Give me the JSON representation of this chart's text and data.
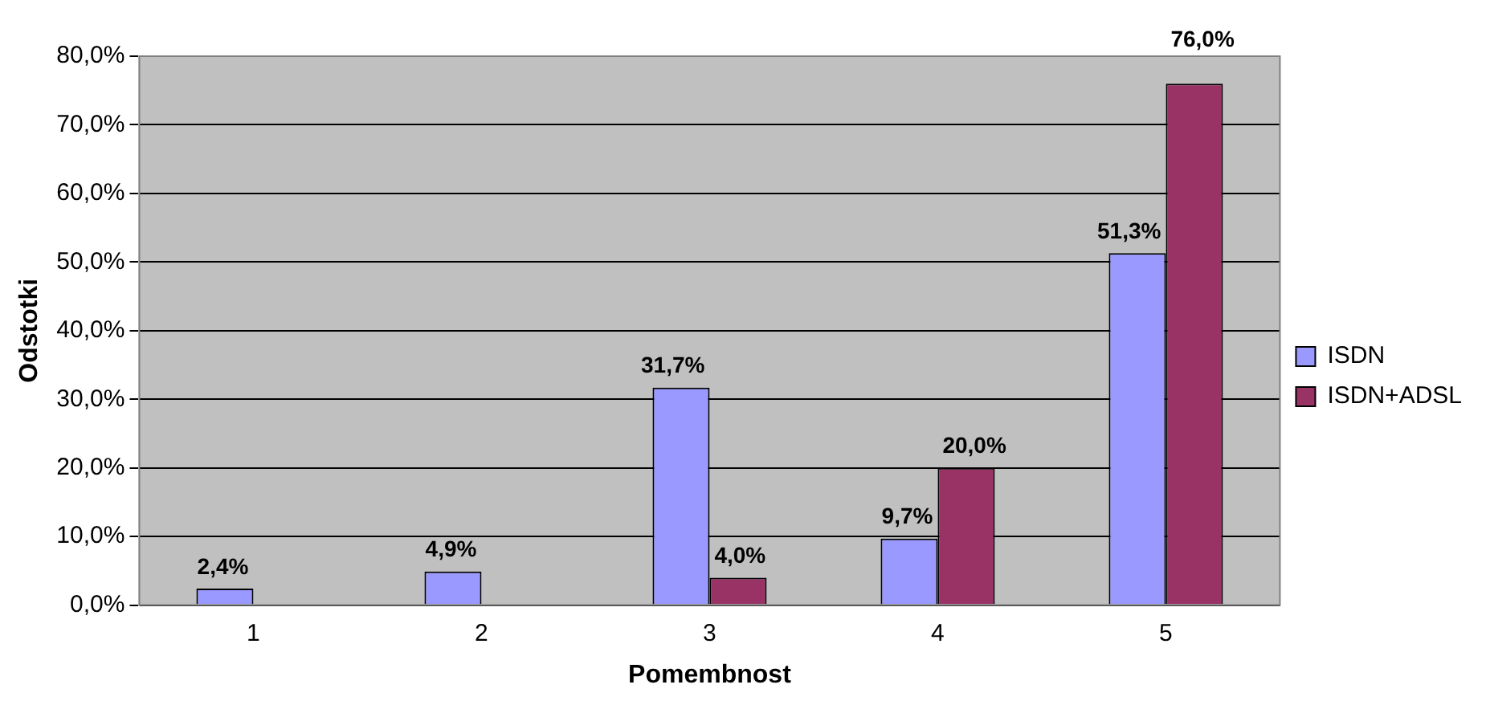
{
  "chart_data": {
    "type": "bar",
    "xlabel": "Pomembnost",
    "ylabel": "Odstotki",
    "categories": [
      "1",
      "2",
      "3",
      "4",
      "5"
    ],
    "series": [
      {
        "name": "ISDN",
        "color": "#9999ff",
        "values": [
          2.4,
          4.9,
          31.7,
          9.7,
          51.3
        ],
        "value_labels": [
          "2,4%",
          "4,9%",
          "31,7%",
          "9,7%",
          "51,3%"
        ]
      },
      {
        "name": "ISDN+ADSL",
        "color": "#993366",
        "values": [
          null,
          null,
          4.0,
          20.0,
          76.0
        ],
        "value_labels": [
          null,
          null,
          "4,0%",
          "20,0%",
          "76,0%"
        ]
      }
    ],
    "ylim": [
      0,
      80
    ],
    "yticks": [
      {
        "value": 0,
        "label": "0,0%"
      },
      {
        "value": 10,
        "label": "10,0%"
      },
      {
        "value": 20,
        "label": "20,0%"
      },
      {
        "value": 30,
        "label": "30,0%"
      },
      {
        "value": 40,
        "label": "40,0%"
      },
      {
        "value": 50,
        "label": "50,0%"
      },
      {
        "value": 60,
        "label": "60,0%"
      },
      {
        "value": 70,
        "label": "70,0%"
      },
      {
        "value": 80,
        "label": "80,0%"
      }
    ],
    "grid": "y",
    "legend": "right"
  }
}
